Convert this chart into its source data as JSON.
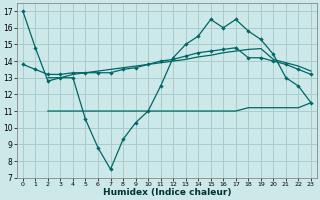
{
  "title": "",
  "xlabel": "Humidex (Indice chaleur)",
  "ylabel": "",
  "bg_color": "#cce8e8",
  "grid_color": "#aacccc",
  "line_color": "#006666",
  "x_ticks": [
    0,
    1,
    2,
    3,
    4,
    5,
    6,
    7,
    8,
    9,
    10,
    11,
    12,
    13,
    14,
    15,
    16,
    17,
    18,
    19,
    20,
    21,
    22,
    23
  ],
  "x_tick_labels": [
    "0",
    "1",
    "2",
    "3",
    "4",
    "5",
    "6",
    "7",
    "8",
    "9",
    "10",
    "11",
    "12",
    "13",
    "14",
    "15",
    "16",
    "17",
    "18",
    "19",
    "20",
    "21",
    "22",
    "23"
  ],
  "y_ticks": [
    7,
    8,
    9,
    10,
    11,
    12,
    13,
    14,
    15,
    16,
    17
  ],
  "xlim": [
    -0.5,
    23.5
  ],
  "ylim": [
    7,
    17.5
  ],
  "line1_x": [
    0,
    1,
    2,
    3,
    4,
    5,
    6,
    7,
    8,
    9,
    10,
    11,
    12,
    13,
    14,
    15,
    16,
    17,
    18,
    19,
    20,
    21,
    22,
    23
  ],
  "line1_y": [
    17,
    14.8,
    12.8,
    13.0,
    13.0,
    10.5,
    8.8,
    7.5,
    9.3,
    10.3,
    11.0,
    12.5,
    14.2,
    15.0,
    15.5,
    16.5,
    16.0,
    16.5,
    15.8,
    15.3,
    14.4,
    13.0,
    12.5,
    11.5
  ],
  "line2_x": [
    0,
    1,
    2,
    3,
    4,
    5,
    6,
    7,
    8,
    9,
    10,
    11,
    12,
    13,
    14,
    15,
    16,
    17,
    18,
    19,
    20,
    21,
    22,
    23
  ],
  "line2_y": [
    13.8,
    13.5,
    13.2,
    13.2,
    13.3,
    13.3,
    13.3,
    13.3,
    13.5,
    13.6,
    13.8,
    14.0,
    14.1,
    14.3,
    14.5,
    14.6,
    14.7,
    14.8,
    14.2,
    14.2,
    14.0,
    13.8,
    13.5,
    13.2
  ],
  "line3_x": [
    2,
    3,
    4,
    5,
    6,
    7,
    8,
    9,
    10,
    11,
    12,
    13,
    14,
    15,
    16,
    17,
    18,
    19,
    20,
    21,
    22,
    23
  ],
  "line3_y": [
    11.0,
    11.0,
    11.0,
    11.0,
    11.0,
    11.0,
    11.0,
    11.0,
    11.0,
    11.0,
    11.0,
    11.0,
    11.0,
    11.0,
    11.0,
    11.0,
    11.2,
    11.2,
    11.2,
    11.2,
    11.2,
    11.5
  ],
  "line4_x": [
    2,
    3,
    4,
    5,
    6,
    7,
    8,
    9,
    10,
    11,
    12,
    13,
    14,
    15,
    16,
    17,
    18,
    19,
    20,
    21,
    22,
    23
  ],
  "line4_y": [
    13.0,
    13.0,
    13.2,
    13.3,
    13.4,
    13.5,
    13.6,
    13.7,
    13.8,
    13.9,
    14.0,
    14.1,
    14.25,
    14.35,
    14.5,
    14.6,
    14.7,
    14.75,
    14.1,
    13.9,
    13.7,
    13.4
  ]
}
